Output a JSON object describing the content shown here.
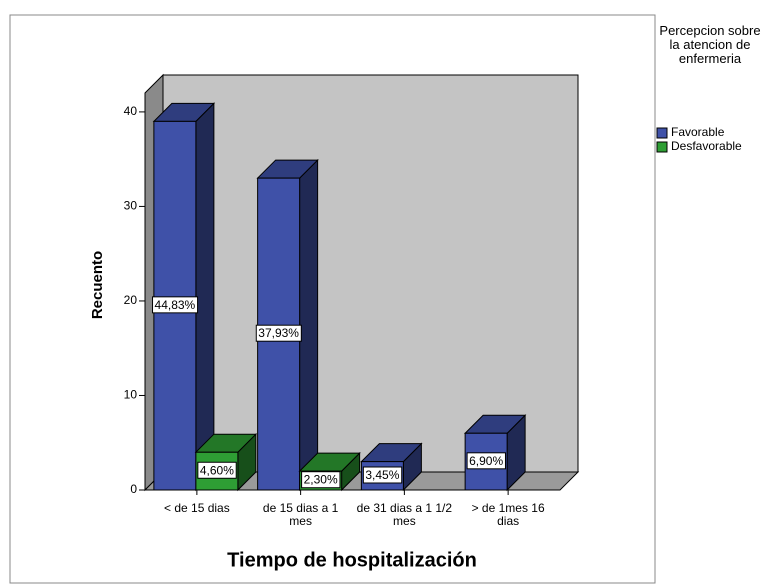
{
  "chart_data": {
    "type": "bar3d",
    "x_label": "Tiempo de hospitalización",
    "y_label": "Recuento",
    "legend_title": "Percepcion sobre la atencion de enfermeria",
    "categories": [
      "< de 15 dias",
      "de 15 dias a 1 mes",
      "de 31 dias  a 1 1/2 mes",
      "> de 1mes 16 dias"
    ],
    "series": [
      {
        "name": "Favorable",
        "color": "#3f51a8",
        "values": [
          39,
          33,
          3,
          6
        ],
        "percentages": [
          44.83,
          37.93,
          3.45,
          6.9
        ],
        "percentage_labels": [
          "44,83%",
          "37,93%",
          "3,45%",
          "6,90%"
        ]
      },
      {
        "name": "Desfavorable",
        "color": "#2e9e34",
        "values": [
          4,
          2,
          null,
          null
        ],
        "percentages": [
          4.6,
          2.3,
          null,
          null
        ],
        "percentage_labels": [
          "4,60%",
          "2,30%",
          null,
          null
        ]
      }
    ],
    "ylim": [
      0,
      42
    ],
    "yticks": [
      0,
      10,
      20,
      30,
      40
    ]
  }
}
